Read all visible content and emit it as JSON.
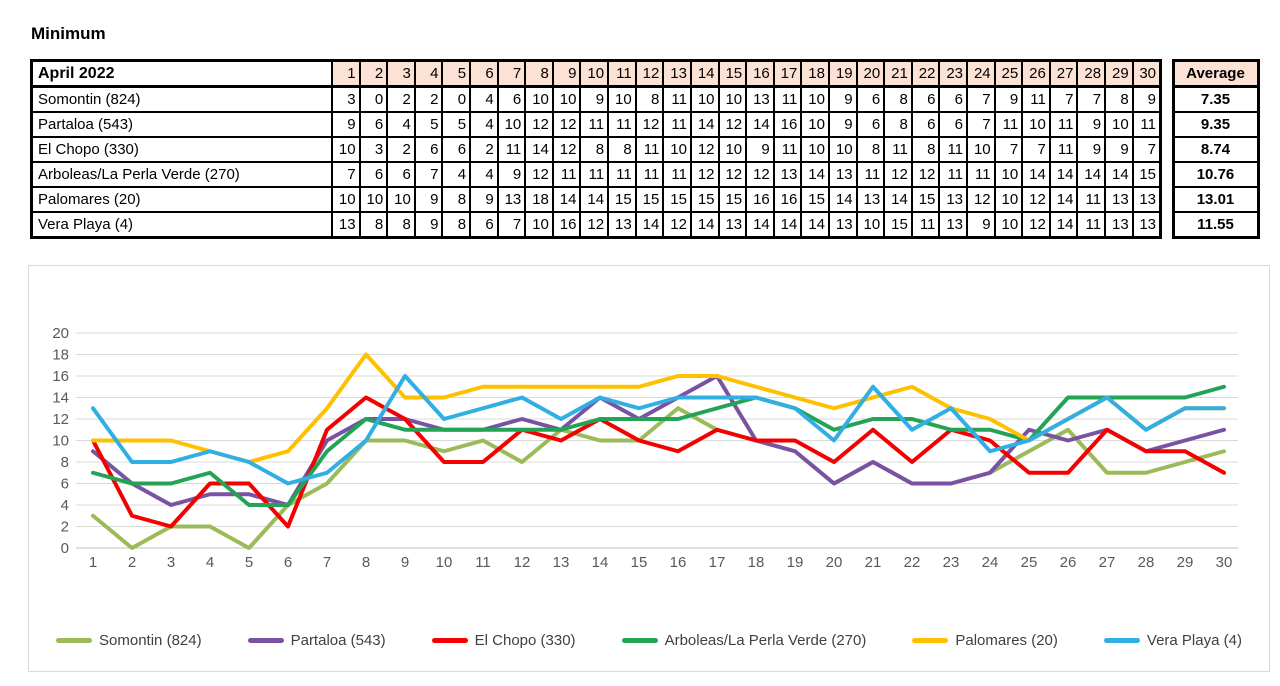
{
  "title": "Minimum",
  "table": {
    "corner_header": "April 2022",
    "day_headers": [
      1,
      2,
      3,
      4,
      5,
      6,
      7,
      8,
      9,
      10,
      11,
      12,
      13,
      14,
      15,
      16,
      17,
      18,
      19,
      20,
      21,
      22,
      23,
      24,
      25,
      26,
      27,
      28,
      29,
      30
    ],
    "average_header": "Average",
    "rows": [
      {
        "label": "Somontin (824)",
        "values": [
          3,
          0,
          2,
          2,
          0,
          4,
          6,
          10,
          10,
          9,
          10,
          8,
          11,
          10,
          10,
          13,
          11,
          10,
          9,
          6,
          8,
          6,
          6,
          7,
          9,
          11,
          7,
          7,
          8,
          9
        ],
        "average": "7.35"
      },
      {
        "label": "Partaloa (543)",
        "values": [
          9,
          6,
          4,
          5,
          5,
          4,
          10,
          12,
          12,
          11,
          11,
          12,
          11,
          14,
          12,
          14,
          16,
          10,
          9,
          6,
          8,
          6,
          6,
          7,
          11,
          10,
          11,
          9,
          10,
          11
        ],
        "average": "9.35"
      },
      {
        "label": "El Chopo (330)",
        "values": [
          10,
          3,
          2,
          6,
          6,
          2,
          11,
          14,
          12,
          8,
          8,
          11,
          10,
          12,
          10,
          9,
          11,
          10,
          10,
          8,
          11,
          8,
          11,
          10,
          7,
          7,
          11,
          9,
          9,
          7
        ],
        "average": "8.74"
      },
      {
        "label": "Arboleas/La Perla Verde (270)",
        "values": [
          7,
          6,
          6,
          7,
          4,
          4,
          9,
          12,
          11,
          11,
          11,
          11,
          11,
          12,
          12,
          12,
          13,
          14,
          13,
          11,
          12,
          12,
          11,
          11,
          10,
          14,
          14,
          14,
          14,
          15
        ],
        "average": "10.76"
      },
      {
        "label": "Palomares (20)",
        "values": [
          10,
          10,
          10,
          9,
          8,
          9,
          13,
          18,
          14,
          14,
          15,
          15,
          15,
          15,
          15,
          16,
          16,
          15,
          14,
          13,
          14,
          15,
          13,
          12,
          10,
          12,
          14,
          11,
          13,
          13
        ],
        "average": "13.01"
      },
      {
        "label": "Vera Playa (4)",
        "values": [
          13,
          8,
          8,
          9,
          8,
          6,
          7,
          10,
          16,
          12,
          13,
          14,
          12,
          14,
          13,
          14,
          14,
          14,
          13,
          10,
          15,
          11,
          13,
          9,
          10,
          12,
          14,
          11,
          13,
          13
        ],
        "average": "11.55"
      }
    ]
  },
  "chart_data": {
    "type": "line",
    "title": "",
    "xlabel": "",
    "ylabel": "",
    "x": [
      1,
      2,
      3,
      4,
      5,
      6,
      7,
      8,
      9,
      10,
      11,
      12,
      13,
      14,
      15,
      16,
      17,
      18,
      19,
      20,
      21,
      22,
      23,
      24,
      25,
      26,
      27,
      28,
      29,
      30
    ],
    "ylim": [
      0,
      20
    ],
    "ytick_step": 2,
    "grid": true,
    "legend_position": "bottom",
    "series": [
      {
        "name": "Somontin (824)",
        "color": "#9BBB59",
        "values": [
          3,
          0,
          2,
          2,
          0,
          4,
          6,
          10,
          10,
          9,
          10,
          8,
          11,
          10,
          10,
          13,
          11,
          10,
          9,
          6,
          8,
          6,
          6,
          7,
          9,
          11,
          7,
          7,
          8,
          9
        ]
      },
      {
        "name": "Partaloa (543)",
        "color": "#7A52A3",
        "values": [
          9,
          6,
          4,
          5,
          5,
          4,
          10,
          12,
          12,
          11,
          11,
          12,
          11,
          14,
          12,
          14,
          16,
          10,
          9,
          6,
          8,
          6,
          6,
          7,
          11,
          10,
          11,
          9,
          10,
          11
        ]
      },
      {
        "name": "El Chopo (330)",
        "color": "#F50000",
        "values": [
          10,
          3,
          2,
          6,
          6,
          2,
          11,
          14,
          12,
          8,
          8,
          11,
          10,
          12,
          10,
          9,
          11,
          10,
          10,
          8,
          11,
          8,
          11,
          10,
          7,
          7,
          11,
          9,
          9,
          7
        ]
      },
      {
        "name": "Arboleas/La Perla Verde (270)",
        "color": "#23A455",
        "values": [
          7,
          6,
          6,
          7,
          4,
          4,
          9,
          12,
          11,
          11,
          11,
          11,
          11,
          12,
          12,
          12,
          13,
          14,
          13,
          11,
          12,
          12,
          11,
          11,
          10,
          14,
          14,
          14,
          14,
          15
        ]
      },
      {
        "name": "Palomares (20)",
        "color": "#FFC000",
        "values": [
          10,
          10,
          10,
          9,
          8,
          9,
          13,
          18,
          14,
          14,
          15,
          15,
          15,
          15,
          15,
          16,
          16,
          15,
          14,
          13,
          14,
          15,
          13,
          12,
          10,
          12,
          14,
          11,
          13,
          13
        ]
      },
      {
        "name": "Vera Playa (4)",
        "color": "#31AEE3",
        "values": [
          13,
          8,
          8,
          9,
          8,
          6,
          7,
          10,
          16,
          12,
          13,
          14,
          12,
          14,
          13,
          14,
          14,
          14,
          13,
          10,
          15,
          11,
          13,
          9,
          10,
          12,
          14,
          11,
          13,
          13
        ]
      }
    ]
  },
  "colors": {
    "header_fill": "#FBE2D5",
    "gridline": "#D9D9D9",
    "axis_line": "#BFBFBF",
    "axis_text": "#595959",
    "table_border": "#000000"
  }
}
